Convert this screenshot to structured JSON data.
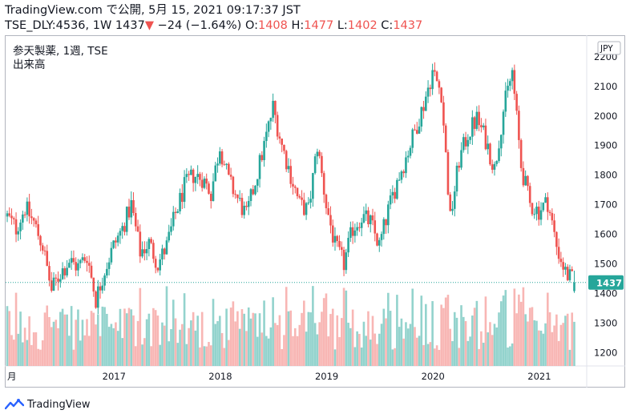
{
  "header": {
    "line1": "TradingView.com で公開, 5月 15, 2021 09:17:37 JST",
    "symbol_interval": "TSE_DLY:4536, 1W",
    "last": "1437",
    "arrow": "▼",
    "change": "−24 (−1.64%)",
    "o_label": "O:",
    "o_value": "1408",
    "h_label": "H:",
    "h_value": "1477",
    "l_label": "L:",
    "l_value": "1402",
    "c_label": "C:",
    "c_value": "1437"
  },
  "legend": {
    "title": "参天製薬, 1週, TSE",
    "volume_label": "出来高"
  },
  "currency_badge": "JPY",
  "footer": {
    "brand": "TradingView"
  },
  "colors": {
    "up": "#26a69a",
    "down": "#ef5350",
    "up_vol": "#80cbc4",
    "down_vol": "#f7a9a7",
    "last_price": "#26a69a"
  },
  "chart_data": {
    "type": "candlestick",
    "title": "参天製薬, 1週, TSE",
    "currency": "JPY",
    "y_ticks": [
      1200,
      1300,
      1400,
      1500,
      1600,
      1700,
      1800,
      1900,
      2000,
      2100,
      2200
    ],
    "ylim": [
      1155,
      2270
    ],
    "x_ticks": [
      "月",
      "2017",
      "2018",
      "2019",
      "2020",
      "2021"
    ],
    "last_price": 1437,
    "last_bar": {
      "open": 1408,
      "high": 1477,
      "low": 1402,
      "close": 1437,
      "change": -24,
      "change_pct": -1.64
    },
    "start": "2016-01",
    "end": "2021-05",
    "weekly_close_approx": [
      {
        "date": "2016-01",
        "close": 1660
      },
      {
        "date": "2016-02",
        "close": 1620
      },
      {
        "date": "2016-03",
        "close": 1690
      },
      {
        "date": "2016-04",
        "close": 1640
      },
      {
        "date": "2016-05",
        "close": 1560
      },
      {
        "date": "2016-06",
        "close": 1410
      },
      {
        "date": "2016-07",
        "close": 1470
      },
      {
        "date": "2016-08",
        "close": 1510
      },
      {
        "date": "2016-09",
        "close": 1490
      },
      {
        "date": "2016-10",
        "close": 1530
      },
      {
        "date": "2016-11",
        "close": 1380
      },
      {
        "date": "2016-12",
        "close": 1480
      },
      {
        "date": "2017-01",
        "close": 1560
      },
      {
        "date": "2017-02",
        "close": 1620
      },
      {
        "date": "2017-03",
        "close": 1700
      },
      {
        "date": "2017-04",
        "close": 1540
      },
      {
        "date": "2017-05",
        "close": 1570
      },
      {
        "date": "2017-06",
        "close": 1500
      },
      {
        "date": "2017-07",
        "close": 1560
      },
      {
        "date": "2017-08",
        "close": 1670
      },
      {
        "date": "2017-09",
        "close": 1760
      },
      {
        "date": "2017-10",
        "close": 1800
      },
      {
        "date": "2017-11",
        "close": 1790
      },
      {
        "date": "2017-12",
        "close": 1740
      },
      {
        "date": "2018-01",
        "close": 1900
      },
      {
        "date": "2018-02",
        "close": 1780
      },
      {
        "date": "2018-03",
        "close": 1720
      },
      {
        "date": "2018-04",
        "close": 1660
      },
      {
        "date": "2018-05",
        "close": 1780
      },
      {
        "date": "2018-06",
        "close": 1900
      },
      {
        "date": "2018-07",
        "close": 2030
      },
      {
        "date": "2018-08",
        "close": 1900
      },
      {
        "date": "2018-09",
        "close": 1800
      },
      {
        "date": "2018-10",
        "close": 1700
      },
      {
        "date": "2018-11",
        "close": 1680
      },
      {
        "date": "2018-12",
        "close": 1900
      },
      {
        "date": "2019-01",
        "close": 1700
      },
      {
        "date": "2019-02",
        "close": 1560
      },
      {
        "date": "2019-03",
        "close": 1500
      },
      {
        "date": "2019-04",
        "close": 1620
      },
      {
        "date": "2019-05",
        "close": 1660
      },
      {
        "date": "2019-06",
        "close": 1640
      },
      {
        "date": "2019-07",
        "close": 1560
      },
      {
        "date": "2019-08",
        "close": 1680
      },
      {
        "date": "2019-09",
        "close": 1780
      },
      {
        "date": "2019-10",
        "close": 1860
      },
      {
        "date": "2019-11",
        "close": 1950
      },
      {
        "date": "2019-12",
        "close": 2040
      },
      {
        "date": "2020-01",
        "close": 2150
      },
      {
        "date": "2020-02",
        "close": 2080
      },
      {
        "date": "2020-03",
        "close": 1650
      },
      {
        "date": "2020-04",
        "close": 1850
      },
      {
        "date": "2020-05",
        "close": 1940
      },
      {
        "date": "2020-06",
        "close": 1990
      },
      {
        "date": "2020-07",
        "close": 1920
      },
      {
        "date": "2020-08",
        "close": 1820
      },
      {
        "date": "2020-09",
        "close": 2020
      },
      {
        "date": "2020-10",
        "close": 2150
      },
      {
        "date": "2020-11",
        "close": 1830
      },
      {
        "date": "2020-12",
        "close": 1700
      },
      {
        "date": "2021-01",
        "close": 1680
      },
      {
        "date": "2021-02",
        "close": 1710
      },
      {
        "date": "2021-03",
        "close": 1560
      },
      {
        "date": "2021-04",
        "close": 1470
      },
      {
        "date": "2021-05",
        "close": 1437
      }
    ]
  }
}
